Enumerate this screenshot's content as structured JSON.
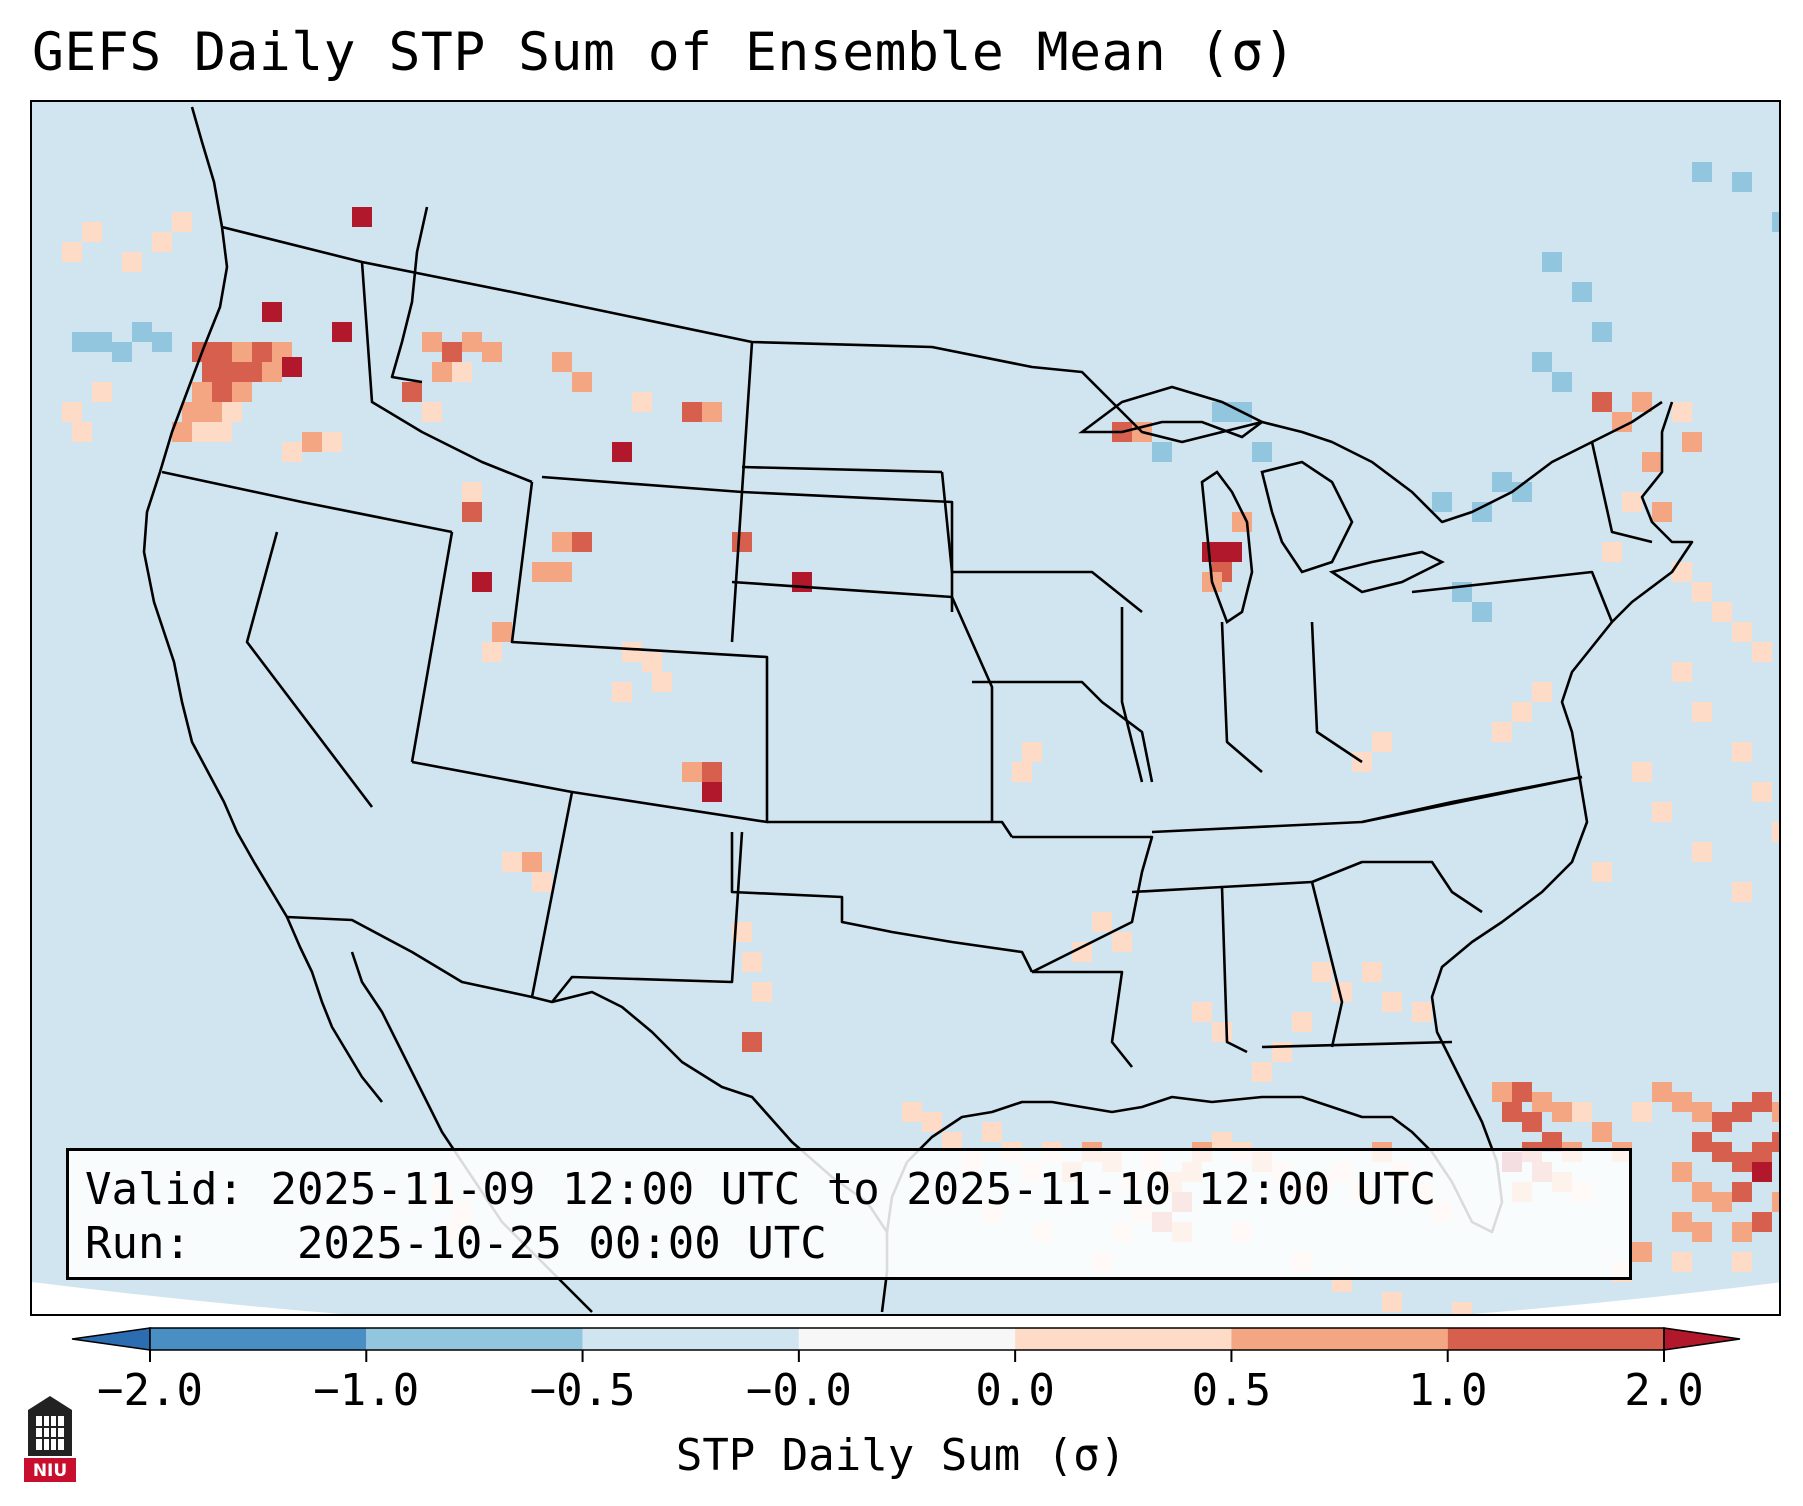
{
  "title": "GEFS Daily STP Sum of Ensemble Mean (σ)",
  "info": {
    "valid_label": "Valid:",
    "valid_value": "2025-11-09 12:00 UTC to 2025-11-10 12:00 UTC",
    "run_label": "Run:",
    "run_value": "2025-10-25 00:00 UTC"
  },
  "colorbar": {
    "label": "STP Daily Sum (σ)",
    "ticks": [
      "−2.0",
      "−1.0",
      "−0.5",
      "−0.0",
      "0.0",
      "0.5",
      "1.0",
      "2.0"
    ],
    "colors": {
      "below": "#2c6db2",
      "bin_neg2_neg1": "#4a8fc4",
      "bin_neg1_neg05": "#92c5de",
      "bin_neg05_0": "#d1e5f0",
      "bin_0_0": "#f7f7f7",
      "bin_0_05": "#fddbc7",
      "bin_05_1": "#f4a582",
      "bin_1_2": "#d6604d",
      "above": "#b2182b"
    }
  },
  "map": {
    "background_color": "#d1e5f0",
    "outside_color": "#ffffff",
    "border_color": "#000000",
    "regions": [
      {
        "name": "Pacific Northwest coast",
        "category": "1.0 to 2.0"
      },
      {
        "name": "Idaho / Montana",
        "category": "0.5 to 1.0"
      },
      {
        "name": "Florida / Gulf of Mexico",
        "category": "1.0 to 2.0"
      },
      {
        "name": "Western Atlantic near Bahamas",
        "category": "above 2.0"
      },
      {
        "name": "Lake Michigan",
        "category": "above 2.0"
      },
      {
        "name": "Southeastern Colorado",
        "category": "above 2.0"
      },
      {
        "name": "Pacific offshore",
        "category": "-1.0 to -0.5"
      }
    ]
  },
  "logo": {
    "text": "NIU",
    "color": "#c8102e"
  }
}
